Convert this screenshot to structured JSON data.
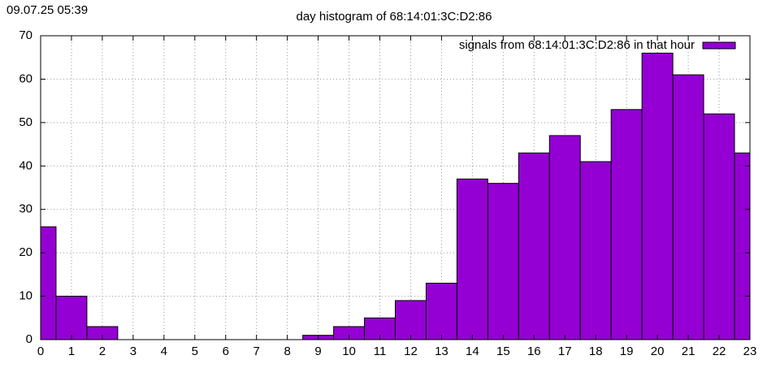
{
  "timestamp": "09.07.25 05:39",
  "chart_data": {
    "type": "bar",
    "title": "day histogram of 68:14:01:3C:D2:86",
    "x": [
      0,
      1,
      2,
      3,
      4,
      5,
      6,
      7,
      8,
      9,
      10,
      11,
      12,
      13,
      14,
      15,
      16,
      17,
      18,
      19,
      20,
      21,
      22,
      23
    ],
    "series": [
      {
        "name": "signals from 68:14:01:3C:D2:86 in that hour",
        "color": "#9400d3",
        "values": [
          26,
          10,
          3,
          0,
          0,
          0,
          0,
          0,
          0,
          1,
          3,
          5,
          9,
          13,
          37,
          36,
          43,
          47,
          41,
          53,
          66,
          61,
          52,
          43
        ]
      }
    ],
    "xlim": [
      0,
      23
    ],
    "ylim": [
      0,
      70
    ],
    "xticks": [
      0,
      1,
      2,
      3,
      4,
      5,
      6,
      7,
      8,
      9,
      10,
      11,
      12,
      13,
      14,
      15,
      16,
      17,
      18,
      19,
      20,
      21,
      22,
      23
    ],
    "yticks": [
      0,
      10,
      20,
      30,
      40,
      50,
      60,
      70
    ],
    "grid": true,
    "legend": "top-right"
  }
}
